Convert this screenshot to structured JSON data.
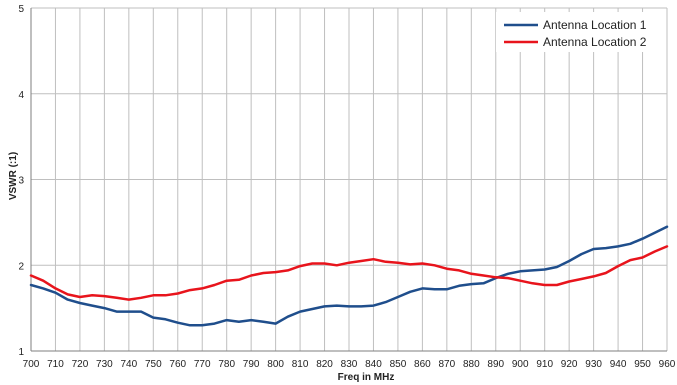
{
  "chart_data": {
    "type": "line",
    "title": "",
    "xlabel": "Freq in MHz",
    "ylabel": "VSWR (:1)",
    "xlim": [
      700,
      960
    ],
    "ylim": [
      1,
      5
    ],
    "x_ticks": [
      "700",
      "710",
      "720",
      "730",
      "740",
      "750",
      "760",
      "770",
      "780",
      "790",
      "800",
      "810",
      "820",
      "830",
      "840",
      "850",
      "860",
      "870",
      "880",
      "890",
      "900",
      "910",
      "920",
      "930",
      "940",
      "950",
      "960"
    ],
    "y_ticks": [
      "1",
      "2",
      "3",
      "4",
      "5"
    ],
    "grid": true,
    "legend_position": "top-right",
    "x": [
      700,
      705,
      710,
      715,
      720,
      725,
      730,
      735,
      740,
      745,
      750,
      755,
      760,
      765,
      770,
      775,
      780,
      785,
      790,
      795,
      800,
      805,
      810,
      815,
      820,
      825,
      830,
      835,
      840,
      845,
      850,
      855,
      860,
      865,
      870,
      875,
      880,
      885,
      890,
      895,
      900,
      905,
      910,
      915,
      920,
      925,
      930,
      935,
      940,
      945,
      950,
      955,
      960
    ],
    "series": [
      {
        "name": "Antenna Location 1",
        "color": "#1f4e8c",
        "values": [
          1.77,
          1.73,
          1.68,
          1.6,
          1.56,
          1.53,
          1.5,
          1.46,
          1.46,
          1.46,
          1.39,
          1.37,
          1.33,
          1.3,
          1.3,
          1.32,
          1.36,
          1.34,
          1.36,
          1.34,
          1.32,
          1.4,
          1.46,
          1.49,
          1.52,
          1.53,
          1.52,
          1.52,
          1.53,
          1.57,
          1.63,
          1.69,
          1.73,
          1.72,
          1.72,
          1.76,
          1.78,
          1.79,
          1.85,
          1.9,
          1.93,
          1.94,
          1.95,
          1.98,
          2.05,
          2.13,
          2.19,
          2.2,
          2.22,
          2.25,
          2.31,
          2.38,
          2.45
        ]
      },
      {
        "name": "Antenna Location 2",
        "color": "#e8141c",
        "values": [
          1.88,
          1.82,
          1.73,
          1.66,
          1.63,
          1.65,
          1.64,
          1.62,
          1.6,
          1.62,
          1.65,
          1.65,
          1.67,
          1.71,
          1.73,
          1.77,
          1.82,
          1.83,
          1.88,
          1.91,
          1.92,
          1.94,
          1.99,
          2.02,
          2.02,
          2.0,
          2.03,
          2.05,
          2.07,
          2.04,
          2.03,
          2.01,
          2.02,
          2.0,
          1.96,
          1.94,
          1.9,
          1.88,
          1.86,
          1.85,
          1.82,
          1.79,
          1.77,
          1.77,
          1.81,
          1.84,
          1.87,
          1.91,
          1.99,
          2.06,
          2.09,
          2.16,
          2.22
        ]
      }
    ]
  }
}
